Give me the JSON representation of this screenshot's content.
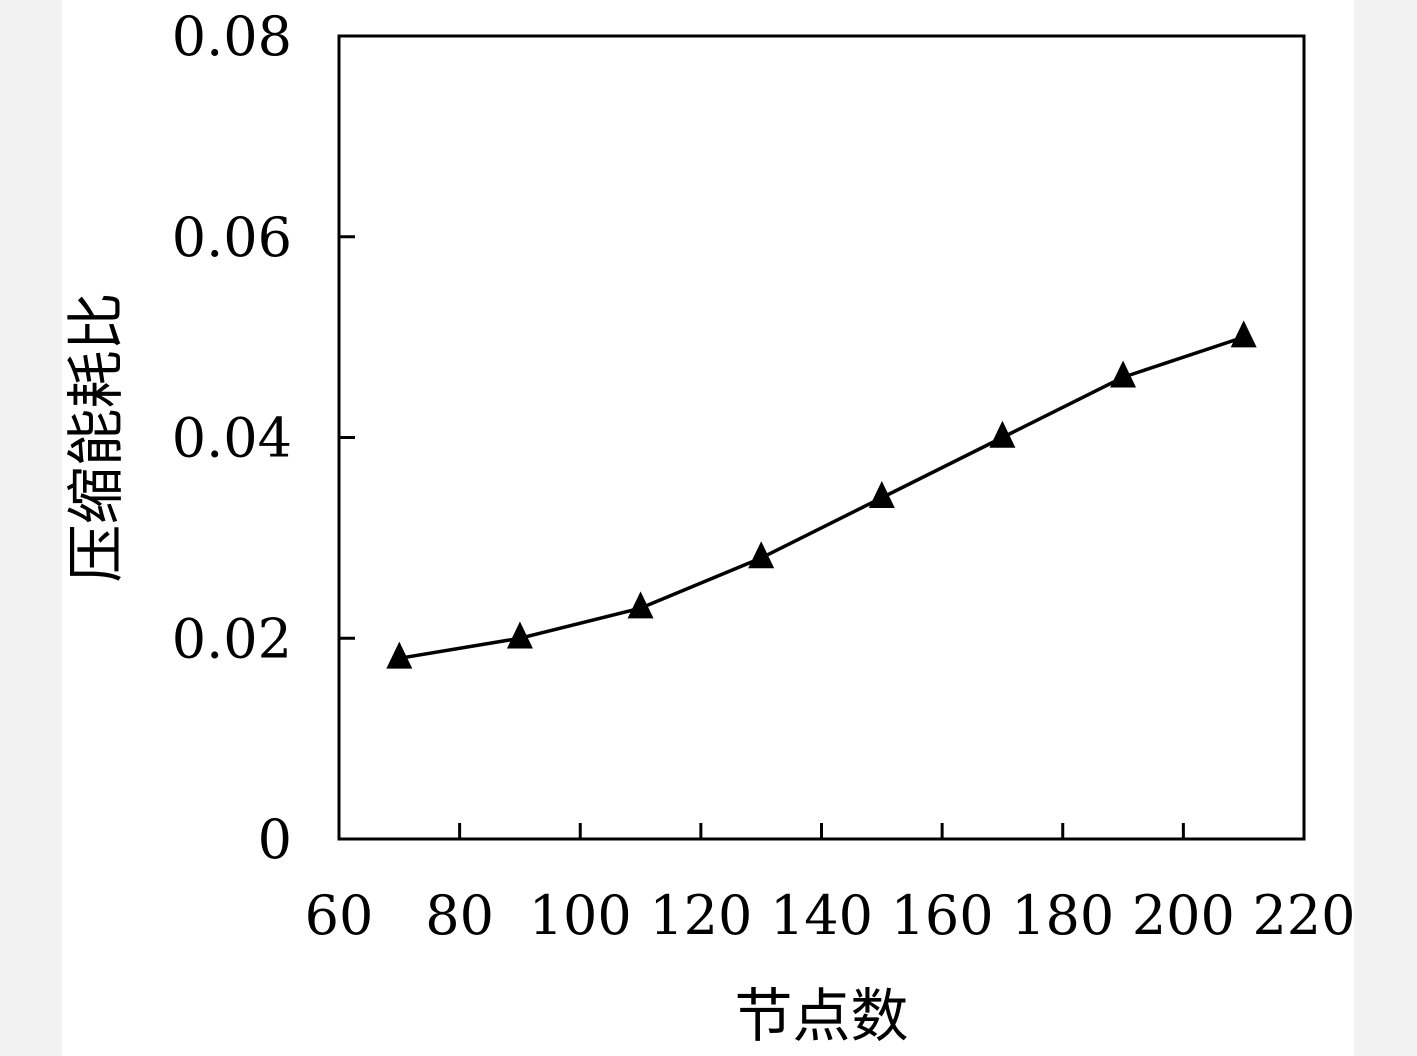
{
  "chart_data": {
    "type": "line",
    "title": "",
    "xlabel": "节点数",
    "ylabel": "压缩能耗比",
    "xlim": [
      60,
      220
    ],
    "ylim": [
      0,
      0.08
    ],
    "x_ticks": [
      "60",
      "80",
      "100",
      "120",
      "140",
      "160",
      "180",
      "200",
      "220"
    ],
    "y_ticks": [
      "0",
      "0.02",
      "0.04",
      "0.06",
      "0.08"
    ],
    "grid": false,
    "legend": "none",
    "series": [
      {
        "marker": "triangle",
        "color": "#000000",
        "x": [
          70,
          90,
          110,
          130,
          150,
          170,
          190,
          210
        ],
        "y": [
          0.018,
          0.02,
          0.023,
          0.028,
          0.034,
          0.04,
          0.046,
          0.05
        ]
      }
    ]
  }
}
